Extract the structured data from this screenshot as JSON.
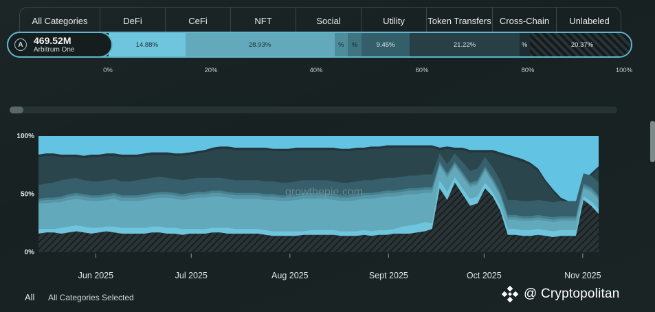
{
  "tabs": [
    "All Categories",
    "DeFi",
    "CeFi",
    "NFT",
    "Social",
    "Utility",
    "Token Transfers",
    "Cross-Chain",
    "Unlabeled"
  ],
  "chain": {
    "value": "469.52M",
    "name": "Arbitrum One",
    "icon": "arbitrum-icon"
  },
  "breakdown": [
    {
      "category": "DeFi",
      "percent": 14.88,
      "label": "14.88%",
      "color": "#6fc5dd"
    },
    {
      "category": "CeFi",
      "percent": 28.93,
      "label": "28.93%",
      "color": "#62a9bb"
    },
    {
      "category": "NFT",
      "percent": 2.6,
      "label": "%",
      "color": "#4f8c99"
    },
    {
      "category": "Social",
      "percent": 2.6,
      "label": "%",
      "color": "#3f7481"
    },
    {
      "category": "Utility",
      "percent": 9.45,
      "label": "9.45%",
      "color": "#345e6a"
    },
    {
      "category": "Token Transfers",
      "percent": 21.22,
      "label": "21.22%",
      "color": "#283f46"
    },
    {
      "category": "Cross-Chain",
      "percent": 2.0,
      "label": "%",
      "color": "#1e2d31"
    },
    {
      "category": "Unlabeled",
      "percent": 20.37,
      "label": "20.37%",
      "color": "hatch"
    }
  ],
  "breakdown_scale": [
    "0%",
    "20%",
    "40%",
    "60%",
    "80%",
    "100%"
  ],
  "chart_data": {
    "type": "area",
    "stacked": "percent",
    "x_ticks": [
      "Jun 2025",
      "Jul 2025",
      "Aug 2025",
      "Sept 2025",
      "Oct 2025",
      "Nov 2025"
    ],
    "y_ticks": [
      "0%",
      "50%",
      "100%"
    ],
    "ylim": [
      0,
      100
    ],
    "watermark": "growthepie.com",
    "x_start": "2025-05-14",
    "x_end": "2025-11-06",
    "boundaries": [
      {
        "name": "Unlabeled",
        "color": "hatch",
        "values": [
          16,
          17,
          17,
          16,
          17,
          18,
          17,
          16,
          17,
          18,
          17,
          16,
          16,
          16,
          16,
          17,
          17,
          16,
          16,
          15,
          16,
          16,
          16,
          17,
          17,
          16,
          16,
          16,
          16,
          16,
          15,
          14,
          14,
          14,
          14,
          15,
          15,
          15,
          15,
          15,
          14,
          14,
          14,
          15,
          14,
          15,
          15,
          16,
          16,
          16,
          17,
          18,
          20,
          55,
          45,
          60,
          50,
          40,
          42,
          55,
          48,
          36,
          15,
          15,
          14,
          14,
          15,
          14,
          13,
          14,
          14,
          14,
          45,
          40,
          33
        ]
      },
      {
        "name": "DeFi",
        "color": "#6fc5dd",
        "values": [
          20,
          20,
          20,
          21,
          22,
          23,
          22,
          21,
          21,
          22,
          22,
          21,
          21,
          21,
          21,
          22,
          22,
          21,
          21,
          20,
          20,
          20,
          20,
          21,
          21,
          21,
          20,
          20,
          20,
          20,
          19,
          18,
          18,
          18,
          18,
          18,
          19,
          19,
          19,
          19,
          18,
          18,
          18,
          19,
          18,
          19,
          19,
          20,
          22,
          23,
          24,
          26,
          25,
          62,
          52,
          65,
          55,
          46,
          48,
          60,
          52,
          40,
          20,
          20,
          19,
          19,
          20,
          19,
          18,
          19,
          19,
          19,
          48,
          44,
          37
        ]
      },
      {
        "name": "CeFi",
        "color": "#62a9bb",
        "values": [
          42,
          42,
          43,
          43,
          45,
          46,
          45,
          44,
          44,
          45,
          46,
          44,
          44,
          44,
          45,
          46,
          47,
          47,
          46,
          45,
          46,
          47,
          47,
          48,
          48,
          47,
          46,
          46,
          46,
          46,
          45,
          45,
          44,
          44,
          45,
          46,
          46,
          46,
          46,
          45,
          44,
          44,
          45,
          46,
          46,
          47,
          48,
          48,
          49,
          50,
          50,
          51,
          51,
          74,
          64,
          74,
          65,
          56,
          58,
          70,
          60,
          48,
          28,
          28,
          27,
          27,
          28,
          27,
          26,
          27,
          27,
          27,
          55,
          52,
          45
        ]
      },
      {
        "name": "NFT",
        "color": "#5796a6",
        "values": [
          44,
          45,
          45,
          46,
          48,
          49,
          48,
          47,
          47,
          48,
          49,
          47,
          47,
          47,
          48,
          49,
          50,
          50,
          49,
          48,
          49,
          50,
          50,
          51,
          51,
          50,
          49,
          49,
          49,
          49,
          48,
          48,
          47,
          47,
          48,
          49,
          49,
          49,
          49,
          48,
          47,
          47,
          48,
          49,
          49,
          50,
          51,
          51,
          52,
          53,
          53,
          54,
          54,
          76,
          66,
          76,
          67,
          58,
          60,
          72,
          62,
          50,
          30,
          30,
          29,
          29,
          30,
          29,
          28,
          29,
          29,
          29,
          57,
          54,
          47
        ]
      },
      {
        "name": "Social",
        "color": "#467f8d",
        "values": [
          46,
          47,
          47,
          48,
          50,
          51,
          50,
          49,
          49,
          50,
          51,
          49,
          49,
          49,
          50,
          51,
          52,
          52,
          51,
          50,
          51,
          52,
          52,
          53,
          53,
          52,
          51,
          51,
          51,
          51,
          50,
          50,
          49,
          49,
          50,
          51,
          51,
          51,
          51,
          50,
          49,
          49,
          50,
          51,
          51,
          52,
          53,
          53,
          54,
          55,
          55,
          56,
          56,
          78,
          68,
          78,
          69,
          60,
          62,
          74,
          64,
          52,
          32,
          32,
          31,
          31,
          32,
          31,
          30,
          31,
          31,
          31,
          59,
          56,
          49
        ]
      },
      {
        "name": "Utility",
        "color": "#365f6b",
        "values": [
          58,
          59,
          60,
          62,
          63,
          64,
          62,
          61,
          61,
          62,
          63,
          61,
          61,
          62,
          63,
          64,
          65,
          64,
          63,
          62,
          63,
          64,
          64,
          64,
          64,
          63,
          62,
          62,
          62,
          62,
          61,
          61,
          60,
          60,
          61,
          62,
          62,
          62,
          62,
          61,
          60,
          60,
          61,
          62,
          62,
          63,
          64,
          64,
          65,
          66,
          66,
          67,
          67,
          85,
          76,
          85,
          78,
          70,
          72,
          82,
          73,
          62,
          45,
          45,
          44,
          44,
          45,
          44,
          43,
          44,
          44,
          44,
          68,
          66,
          60
        ]
      },
      {
        "name": "Token Transfers",
        "color": "#2b454c",
        "values": [
          82,
          83,
          83,
          82,
          82,
          82,
          81,
          82,
          82,
          83,
          83,
          82,
          82,
          82,
          83,
          84,
          84,
          84,
          83,
          83,
          84,
          85,
          86,
          88,
          89,
          89,
          88,
          88,
          88,
          88,
          88,
          87,
          87,
          87,
          88,
          88,
          88,
          88,
          88,
          88,
          87,
          87,
          88,
          88,
          89,
          89,
          90,
          90,
          90,
          90,
          90,
          90,
          90,
          88,
          89,
          88,
          88,
          86,
          86,
          86,
          86,
          84,
          82,
          80,
          78,
          75,
          70,
          60,
          52,
          45,
          42,
          40,
          60,
          66,
          72
        ]
      },
      {
        "name": "Cross-Chain",
        "color": "#22363c",
        "values": [
          84,
          85,
          85,
          84,
          84,
          84,
          83,
          84,
          84,
          85,
          85,
          84,
          84,
          84,
          85,
          86,
          86,
          86,
          85,
          85,
          86,
          87,
          88,
          90,
          91,
          91,
          90,
          90,
          90,
          90,
          90,
          89,
          89,
          89,
          90,
          90,
          90,
          90,
          90,
          90,
          89,
          89,
          90,
          90,
          91,
          91,
          92,
          92,
          92,
          92,
          92,
          92,
          92,
          90,
          91,
          90,
          90,
          88,
          88,
          88,
          88,
          86,
          84,
          82,
          80,
          77,
          72,
          62,
          54,
          47,
          44,
          42,
          62,
          68,
          74
        ]
      }
    ]
  }
}
